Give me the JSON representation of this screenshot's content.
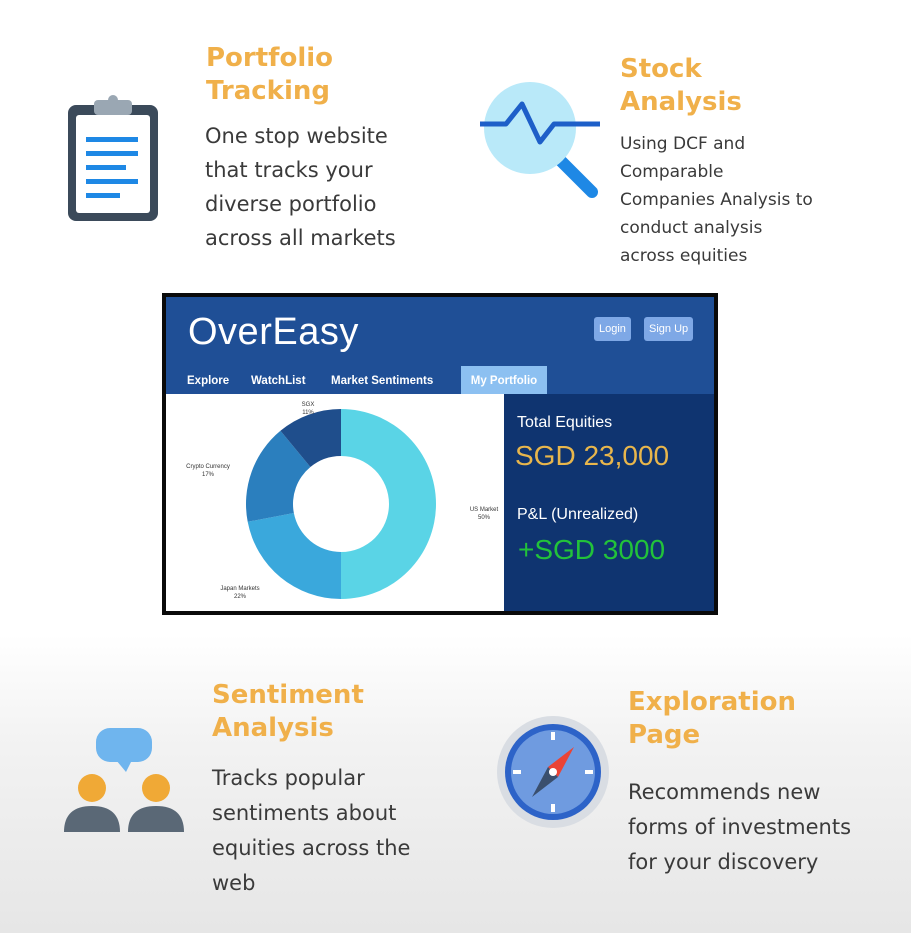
{
  "features": [
    {
      "title_line1": "Portfolio",
      "title_line2": "Tracking",
      "desc": [
        "One stop website",
        "that tracks your",
        "diverse portfolio",
        "across all markets"
      ],
      "icon": "clipboard-icon"
    },
    {
      "title_line1": "Stock",
      "title_line2": "Analysis",
      "desc": [
        "Using DCF and",
        "Comparable",
        "Companies Analysis to",
        "conduct analysis",
        "across equities"
      ],
      "icon": "magnifier-chart-icon"
    },
    {
      "title_line1": "Sentiment",
      "title_line2": "Analysis",
      "desc": [
        "Tracks popular",
        "sentiments about",
        "equities across the",
        "web"
      ],
      "icon": "people-chat-icon"
    },
    {
      "title_line1": "Exploration",
      "title_line2": "Page",
      "desc": [
        "Recommends new",
        "forms of investments",
        "for your discovery"
      ],
      "icon": "compass-icon"
    }
  ],
  "mockup": {
    "logo": "OverEasy",
    "login_label": "Login",
    "signup_label": "Sign Up",
    "nav": [
      "Explore",
      "WatchList",
      "Market Sentiments",
      "My Portfolio"
    ],
    "total_equities_label": "Total Equities",
    "total_equities_value": "SGD 23,000",
    "pnl_label": "P&L (Unrealized)",
    "pnl_value": "+SGD 3000",
    "colors": {
      "header": "#1f4f96",
      "panel": "#0f3470",
      "gold": "#e8b64c",
      "green": "#22c23a"
    }
  },
  "chart_data": {
    "type": "pie",
    "donut": true,
    "categories": [
      "US Market",
      "Japan Markets",
      "Crypto Currency",
      "SGX"
    ],
    "values": [
      50,
      22,
      17,
      11
    ],
    "value_labels": [
      "50%",
      "22%",
      "17%",
      "11%"
    ],
    "colors": [
      "#5ad4e6",
      "#3aa8dc",
      "#2b7fbe",
      "#1f4e8c"
    ]
  }
}
